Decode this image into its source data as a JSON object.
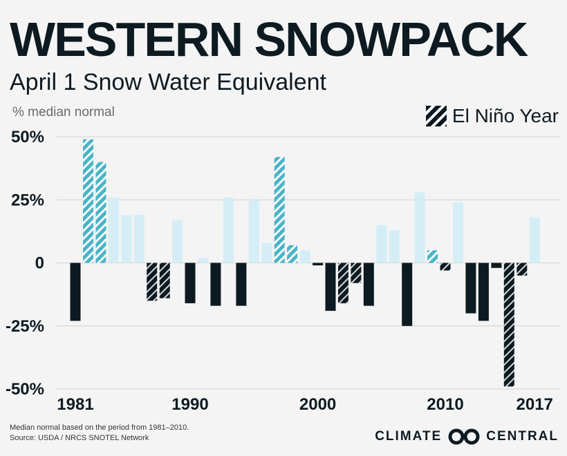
{
  "header": {
    "title": "WESTERN SNOWPACK",
    "subtitle": "April 1 Snow Water Equivalent",
    "unit_label": "% median normal"
  },
  "legend": {
    "label": "El Niño Year"
  },
  "footer": {
    "note": "Median normal based on the period from 1981–2010.",
    "source": "Source: USDA / NRCS SNOTEL Network",
    "brand_left": "CLIMATE",
    "brand_right": "CENTRAL"
  },
  "colors": {
    "negative": "#0e1a22",
    "positive": "#d5eef5",
    "el_nino_positive": "#4ab3c7",
    "el_nino_negative": "#0e1a22",
    "hatch": "#ffffff"
  },
  "chart_data": {
    "type": "bar",
    "x": [
      1981,
      1982,
      1983,
      1984,
      1985,
      1986,
      1987,
      1988,
      1989,
      1990,
      1991,
      1992,
      1993,
      1994,
      1995,
      1996,
      1997,
      1998,
      1999,
      2000,
      2001,
      2002,
      2003,
      2004,
      2005,
      2006,
      2007,
      2008,
      2009,
      2010,
      2011,
      2012,
      2013,
      2014,
      2015,
      2016,
      2017
    ],
    "values": [
      -23,
      49,
      40,
      26,
      19,
      19,
      -15,
      -14,
      17,
      -16,
      2,
      -17,
      26,
      -17,
      25,
      8,
      42,
      7,
      5,
      -1,
      -19,
      -16,
      -8,
      -17,
      15,
      13,
      -25,
      28,
      5,
      -3,
      24,
      -20,
      -23,
      -2,
      -49,
      -5,
      18
    ],
    "el_nino": [
      1982,
      1983,
      1987,
      1988,
      1997,
      1998,
      2002,
      2003,
      2009,
      2010,
      2015,
      2016
    ],
    "ylim": [
      -50,
      50
    ],
    "yticks": [
      50,
      25,
      0,
      -25,
      -50
    ],
    "ytick_labels": [
      "50%",
      "25%",
      "0",
      "-25%",
      "-50%"
    ],
    "xticks": [
      1981,
      1990,
      2000,
      2010,
      2017
    ],
    "xtick_labels": [
      "1981",
      "1990",
      "2000",
      "2010",
      "2017"
    ],
    "grid": true
  }
}
